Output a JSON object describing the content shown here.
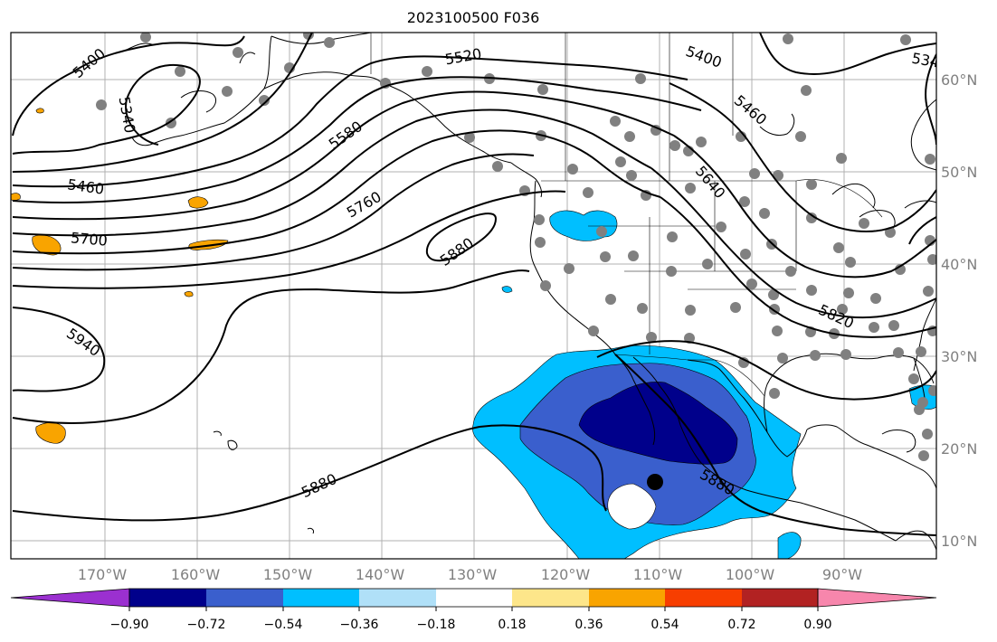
{
  "title": "2023100500 F036",
  "map": {
    "lon_labels": [
      "170°W",
      "160°W",
      "150°W",
      "140°W",
      "130°W",
      "120°W",
      "110°W",
      "100°W",
      "90°W"
    ],
    "lat_labels": [
      "60°N",
      "50°N",
      "40°N",
      "30°N",
      "20°N",
      "10°N"
    ],
    "contour_labels": [
      "5400",
      "5340",
      "5520",
      "5400",
      "5460",
      "5580",
      "5460",
      "5700",
      "5760",
      "5640",
      "5880",
      "5940",
      "5820",
      "5880",
      "5880",
      "534"
    ],
    "hurricane_marker": "black-dot"
  },
  "colorbar": {
    "ticks": [
      "−0.90",
      "−0.72",
      "−0.54",
      "−0.36",
      "−0.18",
      "0.18",
      "0.36",
      "0.54",
      "0.72",
      "0.90"
    ],
    "colors": [
      "#9b30d0",
      "#00008b",
      "#3a5fcd",
      "#00bfff",
      "#b0e0f8",
      "#ffffff",
      "#fde68a",
      "#f9a400",
      "#f73e00",
      "#b22222",
      "#f786ac",
      "#f786ac"
    ]
  }
}
